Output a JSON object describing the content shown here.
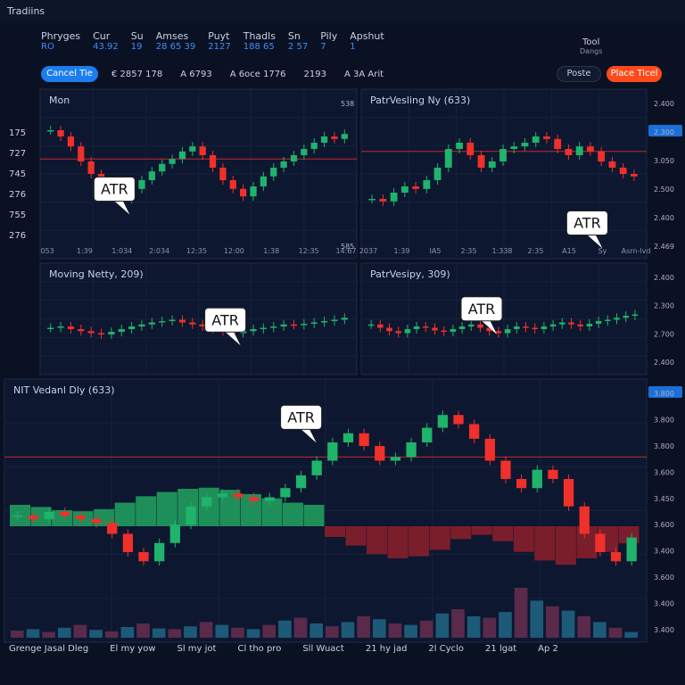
{
  "app": {
    "tab": "Tradiins",
    "menu": [
      {
        "label": "Phryges",
        "value": "RO"
      },
      {
        "label": "Cur",
        "value": "43.92"
      },
      {
        "label": "Su",
        "value": "19"
      },
      {
        "label": "Amses",
        "value": "28 65 39"
      },
      {
        "label": "Puyt",
        "value": "2127"
      },
      {
        "label": "Thadls",
        "value": "188 65"
      },
      {
        "label": "Sn",
        "value": "2 57"
      },
      {
        "label": "Pily",
        "value": "7"
      },
      {
        "label": "Apshut",
        "value": "1"
      }
    ],
    "tool": {
      "label": "Tool",
      "value": "Dangs"
    },
    "toolbar": {
      "button": "Cancel Tie",
      "items": [
        "€ 2857 178",
        "A 6793",
        "A 6oce 1776",
        "2193",
        "A 3A Arit"
      ],
      "secondary": "Poste",
      "primary": "Place Ticel"
    },
    "sidebar": [
      "175",
      "727",
      "745",
      "276",
      "755",
      "276"
    ],
    "footer": [
      "Grenge Jasal Dleg",
      "El my yow",
      "Sl my jot",
      "Cl tho pro",
      "Sll Wuact",
      "21 hy jad",
      "2l Cyclo",
      "21 lgat",
      "Ap 2"
    ]
  },
  "panels": [
    {
      "title": "Mon",
      "callout": "ATR",
      "ylim": [
        0,
        100
      ],
      "level": 62,
      "candles": [
        85,
        80,
        72,
        60,
        50,
        42,
        35,
        30,
        38,
        45,
        52,
        58,
        62,
        68,
        72,
        65,
        55,
        45,
        38,
        32,
        40,
        48,
        55,
        60,
        65,
        70,
        75,
        80,
        78,
        82
      ],
      "xlabels": [
        "053",
        "1:39",
        "1:034",
        "2:034",
        "12:35",
        "12:00",
        "1:38",
        "12:35",
        "14:67"
      ],
      "ylabels": [
        "538",
        "585"
      ]
    },
    {
      "title": "PatrVesling Ny (633)",
      "callout": "ATR",
      "ylim": [
        0,
        100
      ],
      "level": 68,
      "candles": [
        30,
        28,
        35,
        40,
        38,
        45,
        55,
        70,
        75,
        65,
        55,
        60,
        70,
        72,
        75,
        80,
        78,
        70,
        65,
        72,
        68,
        60,
        55,
        50,
        48
      ],
      "xlabels": [
        "2037",
        "1:39",
        "IA5",
        "2:35",
        "1:338",
        "2:35",
        "A15",
        "Sy",
        "Asrn-lvd"
      ],
      "ylabels": [
        "2.400",
        "2.300",
        "3.050",
        "2.500",
        "2.400",
        "2.469"
      ]
    },
    {
      "title": "Moving Netty, 209)",
      "callout": "ATR",
      "ylim": [
        0,
        100
      ],
      "level": null,
      "candles": [
        50,
        52,
        48,
        45,
        42,
        40,
        44,
        48,
        52,
        55,
        58,
        60,
        62,
        58,
        55,
        52,
        48,
        45,
        42,
        45,
        48,
        50,
        52,
        55,
        54,
        56,
        58,
        60,
        62,
        65
      ],
      "xlabels": [],
      "ylabels": []
    },
    {
      "title": "PatrVesipy, 309)",
      "callout": "ATR",
      "ylim": [
        0,
        100
      ],
      "level": null,
      "candles": [
        55,
        50,
        45,
        42,
        48,
        52,
        50,
        46,
        44,
        48,
        52,
        55,
        50,
        45,
        42,
        48,
        52,
        50,
        48,
        52,
        55,
        58,
        55,
        52,
        56,
        60,
        62,
        65,
        68,
        70
      ],
      "xlabels": [],
      "ylabels": [
        "2.400",
        "2.300",
        "2.700",
        "2.400"
      ]
    },
    {
      "title": "NIT Vedanl Dly (633)",
      "callout": "ATR",
      "ylim": [
        0,
        100
      ],
      "level": 72,
      "candles": [
        40,
        38,
        42,
        40,
        38,
        36,
        30,
        20,
        15,
        25,
        35,
        45,
        50,
        52,
        50,
        48,
        50,
        55,
        62,
        70,
        80,
        85,
        78,
        70,
        72,
        80,
        88,
        95,
        90,
        82,
        70,
        60,
        55,
        65,
        60,
        45,
        30,
        20,
        15,
        28
      ],
      "histogram": [
        20,
        18,
        15,
        14,
        16,
        22,
        28,
        32,
        35,
        36,
        34,
        30,
        26,
        22,
        20,
        -10,
        -18,
        -26,
        -30,
        -28,
        -22,
        -12,
        -8,
        -14,
        -24,
        -32,
        -36,
        -30,
        -24,
        -16
      ],
      "volume": [
        10,
        12,
        8,
        14,
        18,
        11,
        9,
        15,
        20,
        13,
        12,
        16,
        22,
        18,
        14,
        12,
        18,
        24,
        28,
        20,
        16,
        22,
        30,
        26,
        20,
        18,
        24,
        34,
        40,
        30,
        28,
        36,
        70,
        52,
        44,
        38,
        30,
        22,
        14,
        8
      ],
      "xlabels": [],
      "ylabels": [
        "3.800",
        "3.800",
        "3.800",
        "3.600",
        "3.450",
        "3.600",
        "3.400",
        "3.600",
        "3.400",
        "3.400"
      ]
    }
  ]
}
